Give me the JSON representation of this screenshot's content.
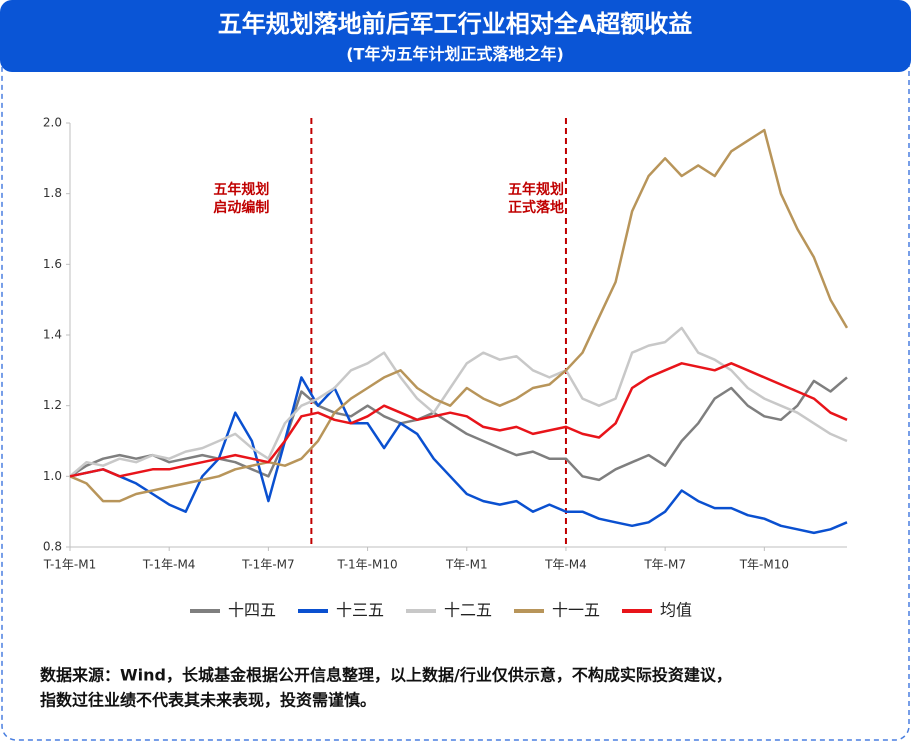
{
  "chart_data": {
    "type": "line",
    "title": "五年规划落地前后军工行业相对全A超额收益",
    "subtitle": "(T年为五年计划正式落地之年)",
    "categories": [
      "T-1年-M1",
      null,
      null,
      null,
      null,
      null,
      "T-1年-M4",
      null,
      null,
      null,
      null,
      null,
      "T-1年-M7",
      null,
      null,
      null,
      null,
      null,
      "T-1年-M10",
      null,
      null,
      null,
      null,
      null,
      "T年-M1",
      null,
      null,
      null,
      null,
      null,
      "T年-M4",
      null,
      null,
      null,
      null,
      null,
      "T年-M7",
      null,
      null,
      null,
      null,
      null,
      "T年-M10",
      null,
      null,
      null,
      null,
      null
    ],
    "series": [
      {
        "name": "十四五",
        "color": "#7f7f7f",
        "values": [
          1.0,
          1.03,
          1.05,
          1.06,
          1.05,
          1.06,
          1.04,
          1.05,
          1.06,
          1.05,
          1.04,
          1.02,
          1.0,
          1.1,
          1.24,
          1.2,
          1.18,
          1.17,
          1.2,
          1.17,
          1.15,
          1.16,
          1.18,
          1.15,
          1.12,
          1.1,
          1.08,
          1.06,
          1.07,
          1.05,
          1.05,
          1.0,
          0.99,
          1.02,
          1.04,
          1.06,
          1.03,
          1.1,
          1.15,
          1.22,
          1.25,
          1.2,
          1.17,
          1.16,
          1.2,
          1.27,
          1.24,
          1.28
        ]
      },
      {
        "name": "十三五",
        "color": "#0a50d0",
        "values": [
          1.0,
          1.01,
          1.02,
          1.0,
          0.98,
          0.95,
          0.92,
          0.9,
          1.0,
          1.05,
          1.18,
          1.1,
          0.93,
          1.1,
          1.28,
          1.2,
          1.25,
          1.15,
          1.15,
          1.08,
          1.15,
          1.12,
          1.05,
          1.0,
          0.95,
          0.93,
          0.92,
          0.93,
          0.9,
          0.92,
          0.9,
          0.9,
          0.88,
          0.87,
          0.86,
          0.87,
          0.9,
          0.96,
          0.93,
          0.91,
          0.91,
          0.89,
          0.88,
          0.86,
          0.85,
          0.84,
          0.85,
          0.87
        ]
      },
      {
        "name": "十二五",
        "color": "#c8c8c8",
        "values": [
          1.0,
          1.04,
          1.03,
          1.05,
          1.04,
          1.06,
          1.05,
          1.07,
          1.08,
          1.1,
          1.12,
          1.08,
          1.05,
          1.15,
          1.2,
          1.22,
          1.25,
          1.3,
          1.32,
          1.35,
          1.28,
          1.22,
          1.18,
          1.25,
          1.32,
          1.35,
          1.33,
          1.34,
          1.3,
          1.28,
          1.3,
          1.22,
          1.2,
          1.22,
          1.35,
          1.37,
          1.38,
          1.42,
          1.35,
          1.33,
          1.3,
          1.25,
          1.22,
          1.2,
          1.18,
          1.15,
          1.12,
          1.1
        ]
      },
      {
        "name": "十一五",
        "color": "#b8955a",
        "values": [
          1.0,
          0.98,
          0.93,
          0.93,
          0.95,
          0.96,
          0.97,
          0.98,
          0.99,
          1.0,
          1.02,
          1.03,
          1.04,
          1.03,
          1.05,
          1.1,
          1.18,
          1.22,
          1.25,
          1.28,
          1.3,
          1.25,
          1.22,
          1.2,
          1.25,
          1.22,
          1.2,
          1.22,
          1.25,
          1.26,
          1.3,
          1.35,
          1.45,
          1.55,
          1.75,
          1.85,
          1.9,
          1.85,
          1.88,
          1.85,
          1.92,
          1.95,
          1.98,
          1.8,
          1.7,
          1.62,
          1.5,
          1.42
        ]
      },
      {
        "name": "均值",
        "color": "#e8141a",
        "values": [
          1.0,
          1.01,
          1.02,
          1.0,
          1.01,
          1.02,
          1.02,
          1.03,
          1.04,
          1.05,
          1.06,
          1.05,
          1.04,
          1.1,
          1.17,
          1.18,
          1.16,
          1.15,
          1.17,
          1.2,
          1.18,
          1.16,
          1.17,
          1.18,
          1.17,
          1.14,
          1.13,
          1.14,
          1.12,
          1.13,
          1.14,
          1.12,
          1.11,
          1.15,
          1.25,
          1.28,
          1.3,
          1.32,
          1.31,
          1.3,
          1.32,
          1.3,
          1.28,
          1.26,
          1.24,
          1.22,
          1.18,
          1.16
        ]
      }
    ],
    "ylim": [
      0.8,
      2.0
    ],
    "yticks": [
      0.8,
      {
        "value": 1,
        "label": "1.0"
      },
      1.2,
      1.4,
      1.6,
      1.8,
      {
        "value": 2,
        "label": "2.0"
      }
    ],
    "annotations": [
      {
        "x": 14.6,
        "color": "#c00000",
        "text": [
          "五年规划",
          "启动编制"
        ]
      },
      {
        "x": 30,
        "color": "#c00000",
        "text": [
          "五年规划",
          "正式落地"
        ]
      }
    ],
    "legend": "bottom",
    "source": [
      "数据来源：Wind，长城基金根据公开信息整理，以上数据/行业仅供示意，不构成实际投资建议，",
      "指数过往业绩不代表其未来表现，投资需谨慎。"
    ]
  }
}
